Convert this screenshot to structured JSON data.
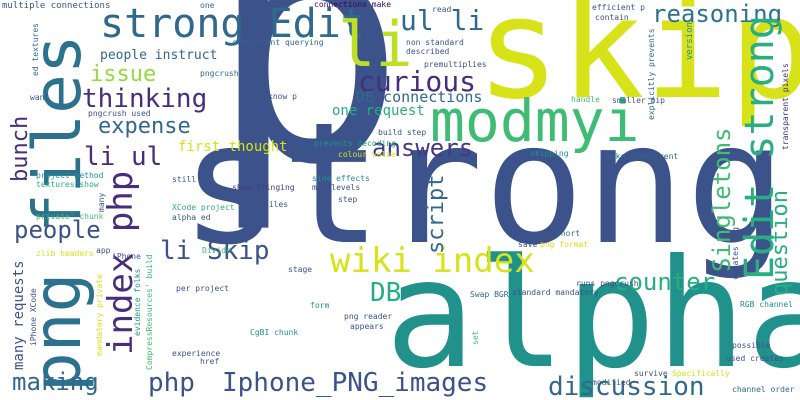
{
  "palette": {
    "navy": "#3b528b",
    "purple": "#472d7b",
    "indigo": "#443983",
    "darkpurple": "#440154",
    "blue": "#31688e",
    "steel": "#2c728e",
    "teal": "#21918c",
    "sea": "#1fa187",
    "green": "#28ae80",
    "lime": "#3fbc73",
    "yellow": "#d7e219",
    "gold": "#bddf26",
    "chartreuse": "#95d840"
  },
  "words": [
    {
      "text": "p",
      "color": "#3b528b"
    },
    {
      "text": "strong",
      "color": "#3b528b"
    },
    {
      "text": "skip",
      "color": "#d7e219"
    },
    {
      "text": "alpha",
      "color": "#21918c"
    },
    {
      "text": "png files",
      "color": "#2c728e"
    },
    {
      "text": "modmyi",
      "color": "#3fbc73"
    },
    {
      "text": "strong Edit",
      "color": "#31688e"
    },
    {
      "text": "li",
      "color": "#bddf26"
    },
    {
      "text": "ul li",
      "color": "#31688e"
    },
    {
      "text": "reasoning",
      "color": "#2c728e"
    },
    {
      "text": "Edit strong",
      "color": "#28ae80"
    },
    {
      "text": "index php",
      "color": "#472d7b"
    },
    {
      "text": "wiki index",
      "color": "#d7e219"
    },
    {
      "text": "Iphone_PNG_images",
      "color": "#3b528b"
    },
    {
      "text": "php",
      "color": "#3b528b"
    },
    {
      "text": "discussion",
      "color": "#31688e"
    },
    {
      "text": "Singletons",
      "color": "#3fbc73"
    },
    {
      "text": "question",
      "color": "#28ae80"
    },
    {
      "text": "curious",
      "color": "#472d7b"
    },
    {
      "text": "thinking",
      "color": "#472d7b"
    },
    {
      "text": "li ul",
      "color": "#472d7b"
    },
    {
      "text": "li Skip",
      "color": "#3b528b"
    },
    {
      "text": "expense",
      "color": "#31688e"
    },
    {
      "text": "issue",
      "color": "#95d840"
    },
    {
      "text": "answers",
      "color": "#443983"
    },
    {
      "text": "counter",
      "color": "#28ae80"
    },
    {
      "text": "people",
      "color": "#3b528b"
    },
    {
      "text": "bunch",
      "color": "#472d7b"
    },
    {
      "text": "making",
      "color": "#31688e"
    },
    {
      "text": "DB",
      "color": "#28ae80"
    },
    {
      "text": "script",
      "color": "#31688e"
    },
    {
      "text": "DB connections",
      "color": "#31688e"
    },
    {
      "text": "first thought",
      "color": "#d7e219"
    },
    {
      "text": "one request",
      "color": "#28ae80"
    },
    {
      "text": "many requests",
      "color": "#3b528b"
    },
    {
      "text": "people instruct",
      "color": "#31688e"
    },
    {
      "text": "multiple connections",
      "color": "#3b528b"
    },
    {
      "text": "one",
      "color": "#31688e"
    },
    {
      "text": "connections make",
      "color": "#440154"
    },
    {
      "text": "read",
      "color": "#3b528b"
    },
    {
      "text": "efficient p",
      "color": "#3b528b"
    },
    {
      "text": "contain",
      "color": "#3b528b"
    },
    {
      "text": "ed textures",
      "color": "#31688e"
    },
    {
      "text": "pngcrush",
      "color": "#31688e"
    },
    {
      "text": "concurrent querying",
      "color": "#31688e"
    },
    {
      "text": "non standard",
      "color": "#3b528b"
    },
    {
      "text": "described",
      "color": "#3b528b"
    },
    {
      "text": "explicitly prevents",
      "color": "#31688e"
    },
    {
      "text": "version",
      "color": "#21918c"
    },
    {
      "text": "premultiplies",
      "color": "#3b528b"
    },
    {
      "text": "transparent pixels",
      "color": "#472d7b"
    },
    {
      "text": "smaller mip",
      "color": "#3b528b"
    },
    {
      "text": "handle",
      "color": "#3fbc73"
    },
    {
      "text": "want",
      "color": "#3b528b"
    },
    {
      "text": "know p",
      "color": "#3b528b"
    },
    {
      "text": "pngcrush used",
      "color": "#3b528b"
    },
    {
      "text": "build step",
      "color": "#3b528b"
    },
    {
      "text": "prevents decoding",
      "color": "#21918c"
    },
    {
      "text": "colour value",
      "color": "#d7e219"
    },
    {
      "text": "make concurrent",
      "color": "#31688e"
    },
    {
      "text": "project method",
      "color": "#21918c"
    },
    {
      "text": "textures show",
      "color": "#28ae80"
    },
    {
      "text": "still",
      "color": "#3b528b"
    },
    {
      "text": "side effects",
      "color": "#21918c"
    },
    {
      "text": "mip levels",
      "color": "#3b528b"
    },
    {
      "text": "show fringing",
      "color": "#443983"
    },
    {
      "text": "skipping",
      "color": "#21918c"
    },
    {
      "text": "files",
      "color": "#3b528b"
    },
    {
      "text": "step",
      "color": "#3b528b"
    },
    {
      "text": "XCode project",
      "color": "#28ae80"
    },
    {
      "text": "alpha ed",
      "color": "#3b528b"
    },
    {
      "text": "private' chunk",
      "color": "#3fbc73"
    },
    {
      "text": "many",
      "color": "#3b528b"
    },
    {
      "text": "short",
      "color": "#31688e"
    },
    {
      "text": "save",
      "color": "#3b528b"
    },
    {
      "text": "png format",
      "color": "#d7e219"
    },
    {
      "text": "creates png",
      "color": "#3b528b"
    },
    {
      "text": "RGB channel",
      "color": "#21918c"
    },
    {
      "text": "zlib headers",
      "color": "#d7e219"
    },
    {
      "text": "app",
      "color": "#3b528b"
    },
    {
      "text": "iPhone",
      "color": "#3b528b"
    },
    {
      "text": "Divide",
      "color": "#3fbc73"
    },
    {
      "text": "stage",
      "color": "#3b528b"
    },
    {
      "text": "runs pngcrush",
      "color": "#3b528b"
    },
    {
      "text": "standard mandatory",
      "color": "#3b528b"
    },
    {
      "text": "iPhone XCode",
      "color": "#3b528b"
    },
    {
      "text": "CompressResources' build",
      "color": "#3fbc73"
    },
    {
      "text": "mandatory private",
      "color": "#d7e219"
    },
    {
      "text": "per project",
      "color": "#3b528b"
    },
    {
      "text": "Swap BGR",
      "color": "#31688e"
    },
    {
      "text": "png reader",
      "color": "#3b528b"
    },
    {
      "text": "appears",
      "color": "#3b528b"
    },
    {
      "text": "form",
      "color": "#21918c"
    },
    {
      "text": "set",
      "color": "#3fbc73"
    },
    {
      "text": "possible",
      "color": "#3b528b"
    },
    {
      "text": "used creates",
      "color": "#3b528b"
    },
    {
      "text": "CgBI chunk",
      "color": "#21918c"
    },
    {
      "text": "evidence folks",
      "color": "#21918c"
    },
    {
      "text": "experience",
      "color": "#3b528b"
    },
    {
      "text": "href",
      "color": "#3b528b"
    },
    {
      "text": "survive",
      "color": "#3b528b"
    },
    {
      "text": "modified",
      "color": "#3b528b"
    },
    {
      "text": "Specifically",
      "color": "#d7e219"
    },
    {
      "text": "channel order",
      "color": "#31688e"
    }
  ]
}
